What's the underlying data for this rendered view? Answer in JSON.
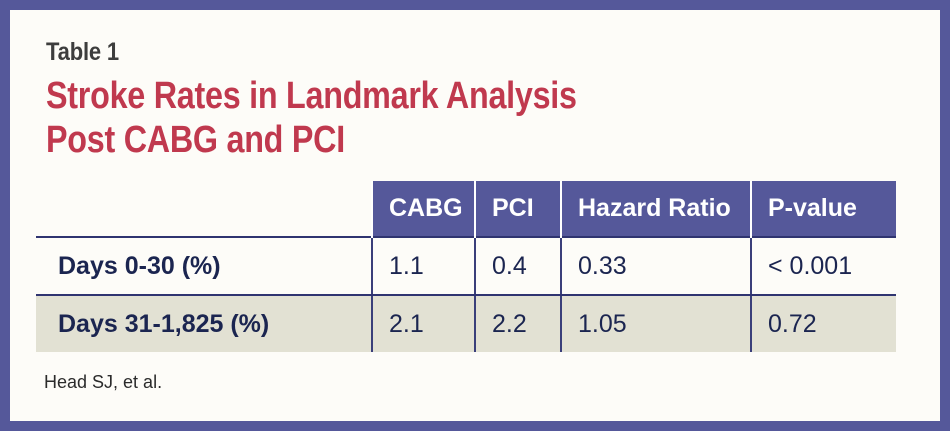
{
  "label": "Table 1",
  "title_lines": [
    "Stroke Rates in Landmark Analysis",
    "Post CABG and PCI"
  ],
  "table": {
    "columns": [
      "CABG",
      "PCI",
      "Hazard Ratio",
      "P-value"
    ],
    "rows": [
      {
        "label": "Days 0-30 (%)",
        "cells": [
          "1.1",
          "0.4",
          "0.33",
          "< 0.001"
        ]
      },
      {
        "label": "Days 31-1,825 (%)",
        "cells": [
          "2.1",
          "2.2",
          "1.05",
          "0.72"
        ]
      }
    ]
  },
  "source": "Head SJ, et al.",
  "colors": {
    "frame": "#55589a",
    "title": "#c0394e",
    "header_bg": "#55589a",
    "alt_row_bg": "#e2e1d3",
    "text": "#1b2550"
  }
}
